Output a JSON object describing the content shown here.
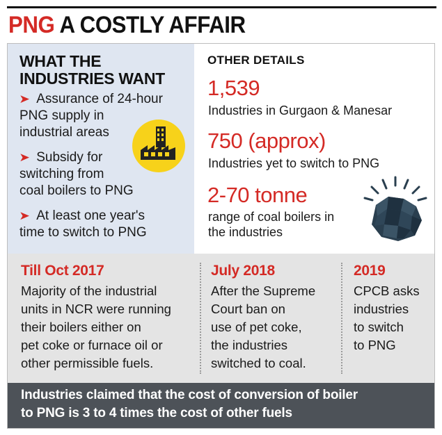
{
  "header": {
    "title_accent": "PNG",
    "title_rest": "A COSTLY AFFAIR"
  },
  "wants": {
    "title_line1": "WHAT THE",
    "title_line2": "INDUSTRIES WANT",
    "items": [
      {
        "line1": "Assurance of 24-hour",
        "line2": "PNG supply in",
        "line3": "industrial areas"
      },
      {
        "line1": "Subsidy for",
        "line2": "switching from",
        "line3": "coal boilers to PNG"
      },
      {
        "line1": "At least one year's",
        "line2": "time to switch to PNG"
      }
    ],
    "bullet_icon": "red-arrow-icon",
    "badge_icon": "factory-icon"
  },
  "details": {
    "title": "OTHER DETAILS",
    "stats": [
      {
        "value": "1,539",
        "line1": "Industries in Gurgaon & Manesar"
      },
      {
        "value": "750 (approx)",
        "line1": "Industries yet to switch to PNG"
      },
      {
        "value": "2-70 tonne",
        "line1": "range of coal boilers in",
        "line2": "the industries"
      }
    ],
    "coal_icon": "coal-icon"
  },
  "timeline": [
    {
      "head": "Till Oct 2017",
      "lines": [
        "Majority of the industrial",
        "units in NCR were running",
        "their boilers either on",
        "pet coke or furnace oil or",
        "other permissible fuels."
      ]
    },
    {
      "head": "July 2018",
      "lines": [
        "After the Supreme",
        "Court ban on",
        "use of pet coke,",
        "the industries",
        "switched to coal."
      ]
    },
    {
      "head": "2019",
      "lines": [
        "CPCB asks",
        "industries",
        "to switch",
        "to PNG"
      ]
    }
  ],
  "footer": {
    "line1": "Industries claimed that the cost of conversion of boiler",
    "line2": "to PNG is 3 to 4 times the cost of other fuels"
  },
  "colors": {
    "accent": "#d42a25",
    "panel_blue": "#dfe6f1",
    "panel_grey": "#e4e4e4",
    "footer_bg": "#4d5258",
    "badge_yellow": "#f7d21a",
    "coal": "#2a3f4f"
  }
}
